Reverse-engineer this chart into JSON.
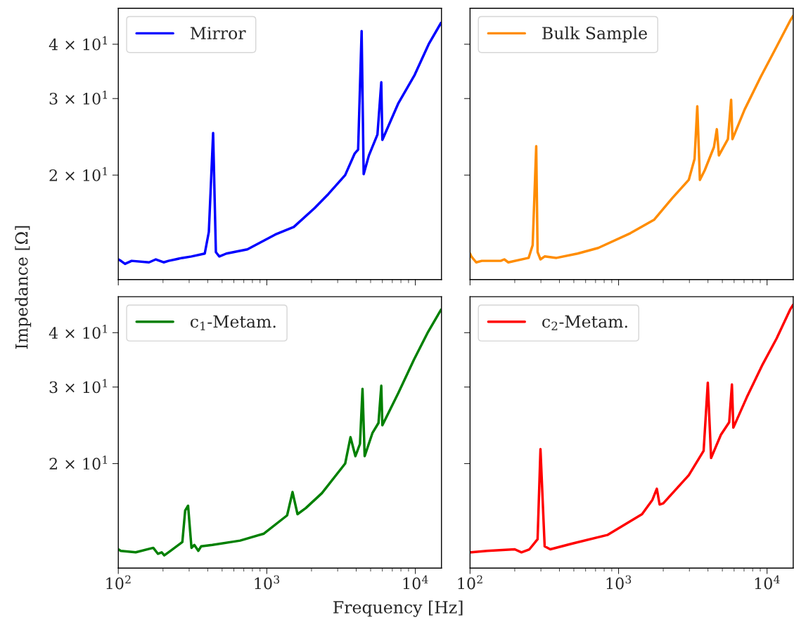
{
  "chart_data": [
    {
      "type": "line",
      "ylabel": "Impedance [Ω]",
      "log": "xy",
      "grid": false,
      "legend": "top left",
      "tick_labels": "y",
      "line_style": "solid",
      "marker": "none",
      "xlim": [
        100,
        15000
      ],
      "ylim": [
        11.5,
        48.4
      ],
      "xticks": [
        {
          "value": 100,
          "label": null
        },
        {
          "value": 1000,
          "label": null
        },
        {
          "value": 10000,
          "label": null
        }
      ],
      "yticks": [
        {
          "value": 20,
          "label": "2 × 10$^{1}$"
        },
        {
          "value": 30,
          "label": "3 × 10$^{1}$"
        },
        {
          "value": 40,
          "label": "4 × 10$^{1}$"
        }
      ],
      "series": [
        {
          "name": "Mirror",
          "color": "#0000ff",
          "x": [
            100,
            104,
            111,
            123,
            161,
            179,
            202,
            218,
            270,
            311,
            382,
            407,
            435,
            454,
            479,
            534,
            740,
            1140,
            1520,
            2100,
            2600,
            3370,
            3900,
            4120,
            4350,
            4490,
            4870,
            5560,
            5900,
            6000,
            7700,
            9900,
            12300,
            14900
          ],
          "values": [
            12.8,
            12.7,
            12.5,
            12.7,
            12.6,
            12.8,
            12.6,
            12.7,
            12.9,
            13.0,
            13.2,
            14.8,
            25.0,
            13.3,
            13.0,
            13.2,
            13.5,
            14.6,
            15.2,
            16.8,
            18.1,
            20.0,
            22.4,
            22.9,
            42.9,
            20.1,
            22.2,
            24.8,
            32.7,
            24.1,
            29.3,
            34.0,
            40.0,
            44.8
          ]
        }
      ]
    },
    {
      "type": "line",
      "log": "xy",
      "grid": false,
      "legend": "top left",
      "tick_labels": false,
      "line_style": "solid",
      "marker": "none",
      "xlim": [
        100,
        15000
      ],
      "ylim": [
        11.5,
        48.4
      ],
      "xticks": [
        {
          "value": 100,
          "label": null
        },
        {
          "value": 1000,
          "label": null
        },
        {
          "value": 10000,
          "label": null
        }
      ],
      "yticks": [
        {
          "value": 20,
          "label": null
        },
        {
          "value": 30,
          "label": null
        },
        {
          "value": 40,
          "label": null
        }
      ],
      "series": [
        {
          "name": "Bulk Sample",
          "color": "#ff8c00",
          "x": [
            100,
            102,
            110,
            120,
            161,
            170,
            181,
            248,
            264,
            279,
            285,
            298,
            318,
            382,
            530,
            730,
            1200,
            1740,
            2300,
            2970,
            3250,
            3390,
            3530,
            3800,
            4390,
            4590,
            4740,
            5450,
            5730,
            5850,
            7060,
            9080,
            11200,
            14300,
            15000
          ],
          "values": [
            13.2,
            13.0,
            12.6,
            12.7,
            12.7,
            12.8,
            12.6,
            12.9,
            13.8,
            23.3,
            13.3,
            12.8,
            13.0,
            12.9,
            13.2,
            13.6,
            14.7,
            15.8,
            17.7,
            19.5,
            21.8,
            28.8,
            19.5,
            20.5,
            23.2,
            25.5,
            22.2,
            24.2,
            29.8,
            24.2,
            28.3,
            33.7,
            38.6,
            45.3,
            46.5
          ]
        }
      ]
    },
    {
      "type": "line",
      "xlabel": "Frequency [Hz]",
      "log": "xy",
      "grid": false,
      "legend": "top left",
      "line_style": "solid",
      "marker": "none",
      "xlim": [
        100,
        15000
      ],
      "ylim": [
        11.5,
        48.4
      ],
      "xticks": [
        {
          "value": 100,
          "label": "10$^{2}$"
        },
        {
          "value": 1000,
          "label": "10$^{3}$"
        },
        {
          "value": 10000,
          "label": "10$^{4}$"
        }
      ],
      "yticks": [
        {
          "value": 20,
          "label": "2 × 10$^{1}$"
        },
        {
          "value": 30,
          "label": "3 × 10$^{1}$"
        },
        {
          "value": 40,
          "label": "4 × 10$^{1}$"
        }
      ],
      "series": [
        {
          "name": "c$_{1}$-Metam.",
          "color": "#008000",
          "x": [
            100,
            104,
            131,
            172,
            185,
            196,
            204,
            225,
            270,
            282,
            295,
            311,
            325,
            346,
            361,
            430,
            661,
            956,
            1370,
            1490,
            1610,
            1830,
            2350,
            3370,
            3660,
            3950,
            4240,
            4410,
            4560,
            5140,
            5650,
            5900,
            6000,
            7700,
            9800,
            12200,
            14900
          ],
          "values": [
            12.7,
            12.6,
            12.5,
            12.8,
            12.4,
            12.5,
            12.3,
            12.6,
            13.2,
            15.6,
            16.0,
            12.8,
            13.0,
            12.6,
            12.9,
            13.0,
            13.3,
            13.8,
            15.2,
            17.2,
            15.3,
            15.8,
            17.1,
            20.0,
            23.0,
            20.8,
            22.2,
            29.7,
            20.8,
            23.5,
            24.8,
            30.2,
            24.5,
            29.1,
            34.7,
            40.2,
            45.2
          ]
        }
      ]
    },
    {
      "type": "line",
      "log": "xy",
      "grid": false,
      "legend": "top left",
      "tick_labels": "x",
      "line_style": "solid",
      "marker": "none",
      "xlim": [
        100,
        15000
      ],
      "ylim": [
        11.5,
        48.4
      ],
      "xticks": [
        {
          "value": 100,
          "label": "10$^{2}$"
        },
        {
          "value": 1000,
          "label": "10$^{3}$"
        },
        {
          "value": 10000,
          "label": "10$^{4}$"
        }
      ],
      "yticks": [
        {
          "value": 20,
          "label": null
        },
        {
          "value": 30,
          "label": null
        },
        {
          "value": 40,
          "label": null
        }
      ],
      "series": [
        {
          "name": "c$_{2}$-Metam.",
          "color": "#ff0000",
          "x": [
            100,
            102,
            130,
            200,
            222,
            251,
            285,
            298,
            318,
            347,
            490,
            840,
            1440,
            1690,
            1810,
            1890,
            2000,
            2970,
            3740,
            3990,
            4200,
            4890,
            5560,
            5800,
            5930,
            7300,
            9330,
            11600,
            14300,
            15000
          ],
          "values": [
            12.5,
            12.5,
            12.6,
            12.7,
            12.5,
            12.7,
            13.4,
            21.6,
            12.9,
            12.7,
            13.1,
            13.7,
            15.3,
            16.5,
            17.5,
            16.1,
            16.2,
            18.8,
            21.4,
            30.7,
            20.6,
            23.3,
            24.9,
            30.4,
            24.2,
            28.4,
            33.8,
            38.8,
            45.2,
            46.4
          ]
        }
      ]
    }
  ]
}
